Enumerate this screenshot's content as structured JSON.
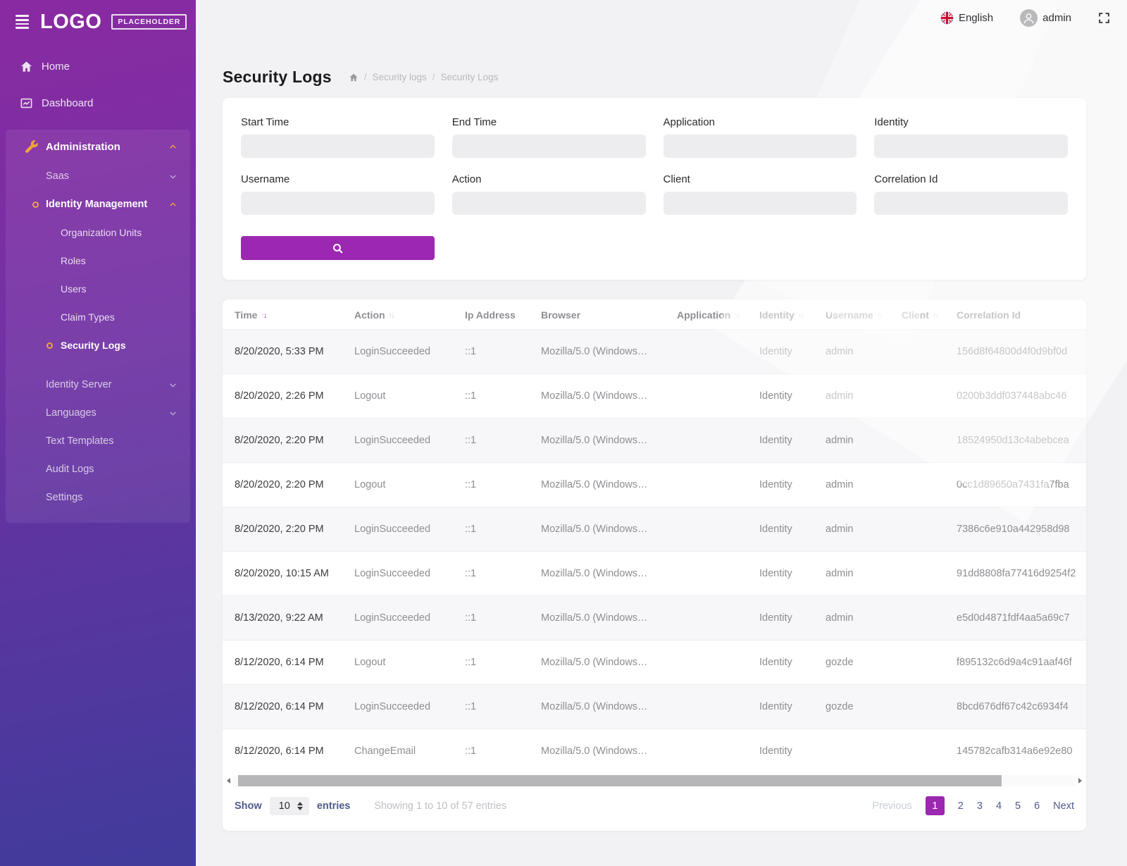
{
  "colors": {
    "accent": "#9c27b0",
    "orange": "#f0a33c"
  },
  "topbar": {
    "language": "English",
    "user": "admin"
  },
  "sidebar": {
    "logo_main": "LOGO",
    "logo_badge": "PLACEHOLDER",
    "home": "Home",
    "dashboard": "Dashboard",
    "administration": "Administration",
    "saas": "Saas",
    "identity_management": "Identity Management",
    "organization_units": "Organization Units",
    "roles": "Roles",
    "users": "Users",
    "claim_types": "Claim Types",
    "security_logs": "Security Logs",
    "identity_server": "Identity Server",
    "languages": "Languages",
    "text_templates": "Text Templates",
    "audit_logs": "Audit Logs",
    "settings": "Settings"
  },
  "page": {
    "title": "Security Logs",
    "breadcrumb": {
      "parent": "Security logs",
      "current": "Security Logs"
    }
  },
  "filters": {
    "fields": [
      {
        "label": "Start Time",
        "value": ""
      },
      {
        "label": "End Time",
        "value": ""
      },
      {
        "label": "Application",
        "value": ""
      },
      {
        "label": "Identity",
        "value": ""
      },
      {
        "label": "Username",
        "value": ""
      },
      {
        "label": "Action",
        "value": ""
      },
      {
        "label": "Client",
        "value": ""
      },
      {
        "label": "Correlation Id",
        "value": ""
      }
    ]
  },
  "table": {
    "columns": [
      {
        "label": "Time",
        "sort": "desc"
      },
      {
        "label": "Action",
        "sort": "none"
      },
      {
        "label": "Ip Address",
        "sort": null
      },
      {
        "label": "Browser",
        "sort": null
      },
      {
        "label": "Application",
        "sort": "none"
      },
      {
        "label": "Identity",
        "sort": "none"
      },
      {
        "label": "Username",
        "sort": "none"
      },
      {
        "label": "Client",
        "sort": "none"
      },
      {
        "label": "Correlation Id",
        "sort": null
      }
    ],
    "rows": [
      [
        "8/20/2020, 5:33 PM",
        "LoginSucceeded",
        "::1",
        "Mozilla/5.0 (Windows…",
        "",
        "Identity",
        "admin",
        "",
        "156d8f64800d4f0d9bf0d"
      ],
      [
        "8/20/2020, 2:26 PM",
        "Logout",
        "::1",
        "Mozilla/5.0 (Windows…",
        "",
        "Identity",
        "admin",
        "",
        "0200b3ddf037448abc46"
      ],
      [
        "8/20/2020, 2:20 PM",
        "LoginSucceeded",
        "::1",
        "Mozilla/5.0 (Windows…",
        "",
        "Identity",
        "admin",
        "",
        "18524950d13c4abebcea"
      ],
      [
        "8/20/2020, 2:20 PM",
        "Logout",
        "::1",
        "Mozilla/5.0 (Windows…",
        "",
        "Identity",
        "admin",
        "",
        "0cc1d89650a7431fa7fba"
      ],
      [
        "8/20/2020, 2:20 PM",
        "LoginSucceeded",
        "::1",
        "Mozilla/5.0 (Windows…",
        "",
        "Identity",
        "admin",
        "",
        "7386c6e910a442958d98"
      ],
      [
        "8/20/2020, 10:15 AM",
        "LoginSucceeded",
        "::1",
        "Mozilla/5.0 (Windows…",
        "",
        "Identity",
        "admin",
        "",
        "91dd8808fa77416d9254f2"
      ],
      [
        "8/13/2020, 9:22 AM",
        "LoginSucceeded",
        "::1",
        "Mozilla/5.0 (Windows…",
        "",
        "Identity",
        "admin",
        "",
        "e5d0d4871fdf4aa5a69c7"
      ],
      [
        "8/12/2020, 6:14 PM",
        "Logout",
        "::1",
        "Mozilla/5.0 (Windows…",
        "",
        "Identity",
        "gozde",
        "",
        "f895132c6d9a4c91aaf46f"
      ],
      [
        "8/12/2020, 6:14 PM",
        "LoginSucceeded",
        "::1",
        "Mozilla/5.0 (Windows…",
        "",
        "Identity",
        "gozde",
        "",
        "8bcd676df67c42c6934f4"
      ],
      [
        "8/12/2020, 6:14 PM",
        "ChangeEmail",
        "::1",
        "Mozilla/5.0 (Windows…",
        "",
        "Identity",
        "",
        "",
        "145782cafb314a6e92e80"
      ]
    ]
  },
  "footer": {
    "show_label": "Show",
    "page_size": "10",
    "entries_label": "entries",
    "showing_text": "Showing 1 to 10 of 57 entries",
    "previous_label": "Previous",
    "pages": [
      "1",
      "2",
      "3",
      "4",
      "5",
      "6"
    ],
    "active_page": "1",
    "next_label": "Next"
  }
}
